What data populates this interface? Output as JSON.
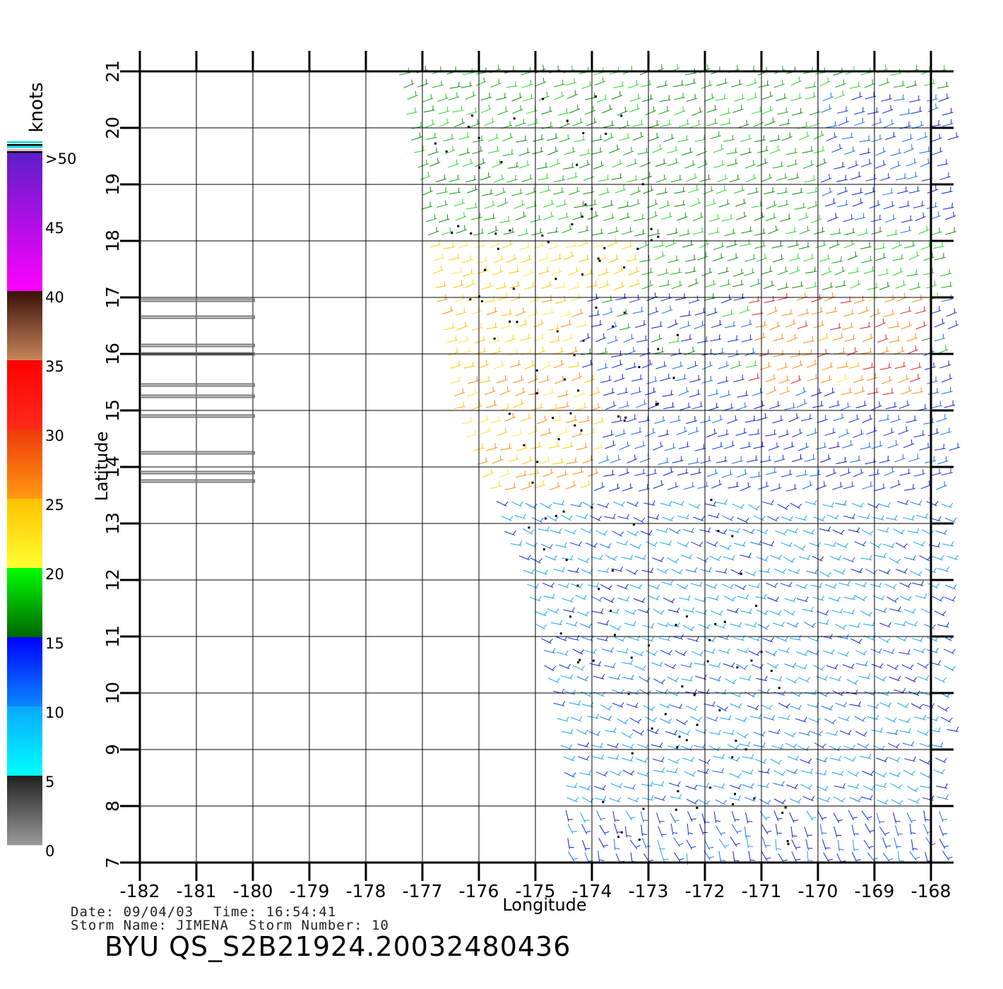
{
  "legend": {
    "unit": "knots",
    "labels": [
      ">50",
      "45",
      "40",
      "35",
      "30",
      "25",
      "20",
      "15",
      "10",
      "5",
      "0"
    ],
    "bands": [
      {
        "from": 50,
        "to": 40,
        "top": "#5e1ec8",
        "bottom": "#ff00ff"
      },
      {
        "from": 40,
        "to": 35,
        "top": "#3a1008",
        "bottom": "#c8865a"
      },
      {
        "from": 35,
        "to": 30,
        "top": "#ff0000",
        "bottom": "#ff2b1a"
      },
      {
        "from": 30,
        "to": 25,
        "top": "#ef3a0c",
        "bottom": "#ff9a10"
      },
      {
        "from": 25,
        "to": 20,
        "top": "#ffc000",
        "bottom": "#ffff30"
      },
      {
        "from": 20,
        "to": 15,
        "top": "#00ff00",
        "bottom": "#006400"
      },
      {
        "from": 15,
        "to": 10,
        "top": "#0000ff",
        "bottom": "#0a88ff"
      },
      {
        "from": 10,
        "to": 5,
        "top": "#0aa8ff",
        "bottom": "#00ffff"
      },
      {
        "from": 5,
        "to": 0,
        "top": "#202020",
        "bottom": "#9a9a9a"
      }
    ]
  },
  "map": {
    "xlabel": "Longitude",
    "ylabel": "Latitude",
    "lon_ticks": [
      "-182",
      "-181",
      "-180",
      "-179",
      "-178",
      "-177",
      "-176",
      "-175",
      "-174",
      "-173",
      "-172",
      "-171",
      "-170",
      "-169",
      "-168"
    ],
    "lat_ticks": [
      "7",
      "8",
      "9",
      "10",
      "11",
      "12",
      "13",
      "14",
      "15",
      "16",
      "17",
      "18",
      "19",
      "20",
      "21"
    ],
    "lon_range": [
      -182,
      -168
    ],
    "lat_range": [
      7,
      21
    ],
    "land_lats": [
      16.95,
      16.65,
      16.15,
      16.0,
      15.45,
      15.25,
      14.9,
      14.25,
      13.9,
      13.75
    ]
  },
  "info": {
    "date": "Date: 09/04/03",
    "time": "Time: 16:54:41",
    "storm_name": "Storm Name: JIMENA",
    "storm_number": "Storm Number: 10",
    "title": "BYU QS_S2B21924.20032480436"
  }
}
